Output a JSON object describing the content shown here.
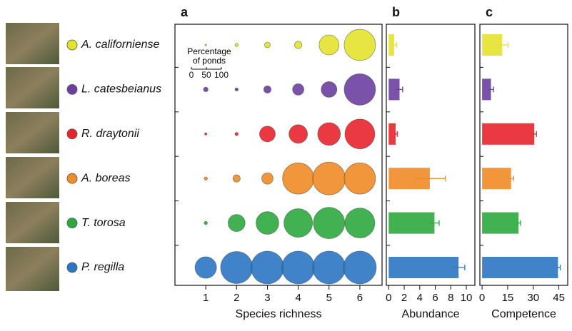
{
  "chart_data": [
    {
      "type": "bubble",
      "label": "a",
      "xlabel": "Species richness",
      "x": [
        1,
        2,
        3,
        4,
        5,
        6
      ],
      "xlim": [
        0,
        6.72
      ],
      "xticks": [
        1,
        2,
        3,
        4,
        5,
        6
      ],
      "size_legend": {
        "title": "Percentage of ponds",
        "ticks": [
          0,
          50,
          100
        ]
      },
      "series": [
        {
          "name": "A. californiense",
          "color": "#e3e22c",
          "values": [
            0.3,
            1,
            3,
            5,
            37,
            91
          ]
        },
        {
          "name": "L. catesbeianus",
          "color": "#6b3fa0",
          "values": [
            2,
            1,
            5,
            12,
            23,
            91
          ]
        },
        {
          "name": "R. draytonii",
          "color": "#e8242b",
          "values": [
            0.5,
            1,
            23,
            32,
            48,
            83
          ]
        },
        {
          "name": "A. boreas",
          "color": "#f08b25",
          "values": [
            1,
            5,
            12,
            91,
            100,
            91
          ]
        },
        {
          "name": "T. torosa",
          "color": "#2da83e",
          "values": [
            1,
            27,
            48,
            76,
            91,
            83
          ]
        },
        {
          "name": "P. regilla",
          "color": "#2b76c2",
          "values": [
            43,
            95,
            100,
            100,
            100,
            100
          ]
        }
      ]
    },
    {
      "type": "hbar",
      "label": "b",
      "xlabel": "Abundance",
      "xlim": [
        -0.3,
        11.1
      ],
      "xticks": [
        0,
        2,
        4,
        6,
        8,
        10
      ],
      "colors": [
        "#e3e22c",
        "#6b3fa0",
        "#e8242b",
        "#f08b25",
        "#2da83e",
        "#2b76c2"
      ],
      "values": [
        0.7,
        1.4,
        0.9,
        5.3,
        5.9,
        9.0
      ],
      "errors": [
        0.3,
        0.4,
        0.2,
        2.0,
        0.6,
        0.8
      ]
    },
    {
      "type": "hbar",
      "label": "c",
      "xlabel": "Competence",
      "xlim": [
        -1.3,
        50.2
      ],
      "xticks": [
        0,
        15,
        30,
        45
      ],
      "colors": [
        "#e3e22c",
        "#6b3fa0",
        "#e8242b",
        "#f08b25",
        "#2da83e",
        "#2b76c2"
      ],
      "values": [
        11.8,
        5.2,
        30.6,
        17.0,
        21.4,
        44.5
      ],
      "errors": [
        3.5,
        1.5,
        1.3,
        1.5,
        1.2,
        1.3
      ]
    }
  ]
}
